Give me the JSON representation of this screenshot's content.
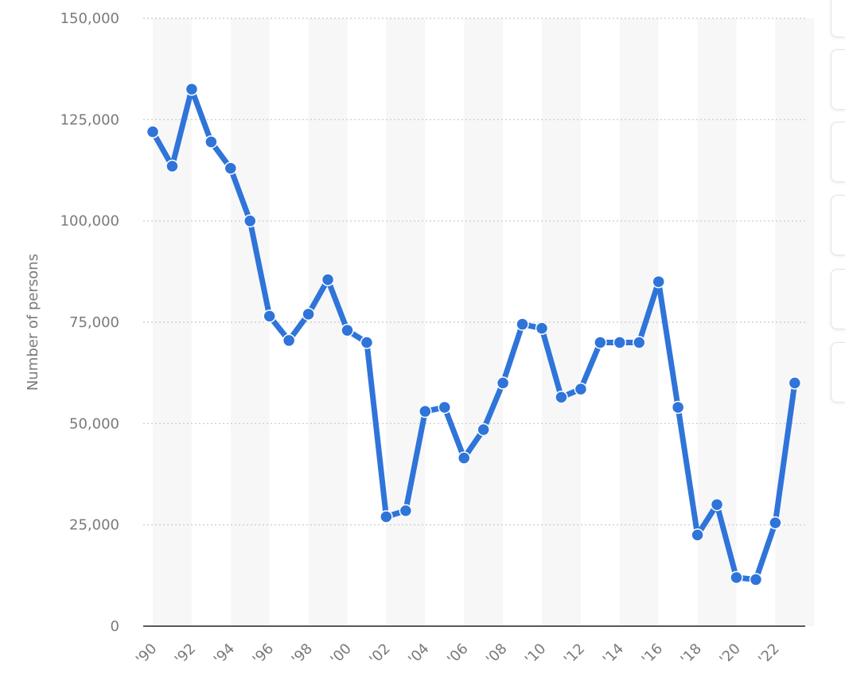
{
  "chart_data": {
    "type": "line",
    "title": "",
    "xlabel": "",
    "ylabel": "Number of persons",
    "x": [
      1990,
      1991,
      1992,
      1993,
      1994,
      1995,
      1996,
      1997,
      1998,
      1999,
      2000,
      2001,
      2002,
      2003,
      2004,
      2005,
      2006,
      2007,
      2008,
      2009,
      2010,
      2011,
      2012,
      2013,
      2014,
      2015,
      2016,
      2017,
      2018,
      2019,
      2020,
      2021,
      2022,
      2023
    ],
    "x_tick_labels": [
      "'90",
      "'92",
      "'94",
      "'96",
      "'98",
      "'00",
      "'02",
      "'04",
      "'06",
      "'08",
      "'10",
      "'12",
      "'14",
      "'16",
      "'18",
      "'20",
      "'22"
    ],
    "y_tick_labels": [
      "0",
      "25,000",
      "50,000",
      "75,000",
      "100,000",
      "125,000",
      "150,000"
    ],
    "y_ticks": [
      0,
      25000,
      50000,
      75000,
      100000,
      125000,
      150000
    ],
    "ylim": [
      0,
      150000
    ],
    "grid": true,
    "series": [
      {
        "values": [
          122000,
          113500,
          132500,
          119500,
          113000,
          100000,
          76500,
          70500,
          77000,
          85500,
          73000,
          70000,
          27000,
          28500,
          53000,
          54000,
          41500,
          48500,
          60000,
          74500,
          73500,
          56500,
          58500,
          70000,
          70000,
          70000,
          85000,
          54000,
          22500,
          30000,
          12000,
          11500,
          25500,
          60000
        ]
      }
    ],
    "colors": {
      "line": "#2f74d9",
      "band": "#f7f7f8",
      "grid": "#c8c8c8",
      "axis": "#222222"
    }
  }
}
